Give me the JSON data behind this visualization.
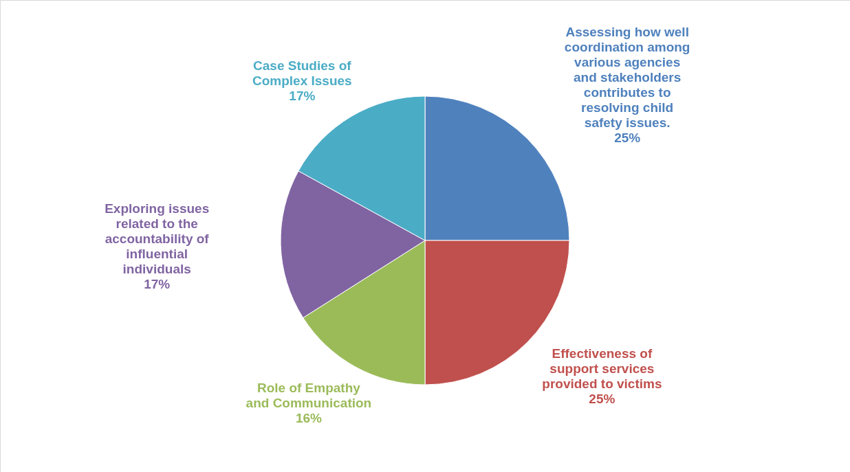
{
  "chart_data": {
    "type": "pie",
    "categories": [
      "Assessing how well\ncoordination among\nvarious agencies\nand stakeholders\ncontributes to\nresolving child\nsafety issues.",
      "Effectiveness of\nsupport services\nprovided to victims",
      "Role of Empathy\nand Communication",
      "Exploring issues\nrelated to the\naccountability of\ninfluential\nindividuals",
      "Case Studies of\nComplex Issues"
    ],
    "values": [
      25,
      25,
      16,
      17,
      17
    ],
    "colors": [
      "#4f81bd",
      "#c0504d",
      "#9bbb59",
      "#8064a2",
      "#4bacc6"
    ],
    "value_labels": [
      "25%",
      "25%",
      "16%",
      "17%",
      "17%"
    ]
  }
}
